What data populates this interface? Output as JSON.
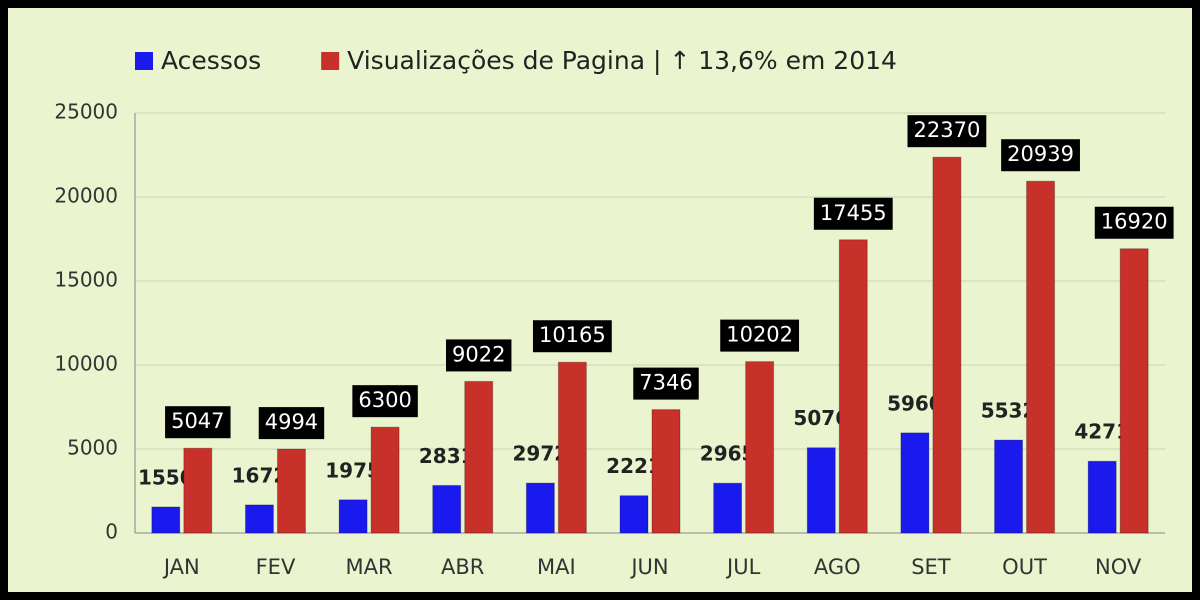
{
  "chart_data": {
    "type": "bar",
    "categories": [
      "JAN",
      "FEV",
      "MAR",
      "ABR",
      "MAI",
      "JUN",
      "JUL",
      "AGO",
      "SET",
      "OUT",
      "NOV"
    ],
    "series": [
      {
        "name": "Acessos",
        "color": "#1a1aee",
        "values": [
          1550,
          1672,
          1975,
          2831,
          2972,
          2221,
          2965,
          5076,
          5960,
          5532,
          4271
        ]
      },
      {
        "name": "Visualizações de Pagina | ↑ 13,6% em 2014",
        "color": "#c8302a",
        "values": [
          5047,
          4994,
          6300,
          9022,
          10165,
          7346,
          10202,
          17455,
          22370,
          20939,
          16920
        ]
      }
    ],
    "ylim": [
      0,
      25000
    ],
    "yticks": [
      0,
      5000,
      10000,
      15000,
      20000,
      25000
    ],
    "grid": true
  }
}
